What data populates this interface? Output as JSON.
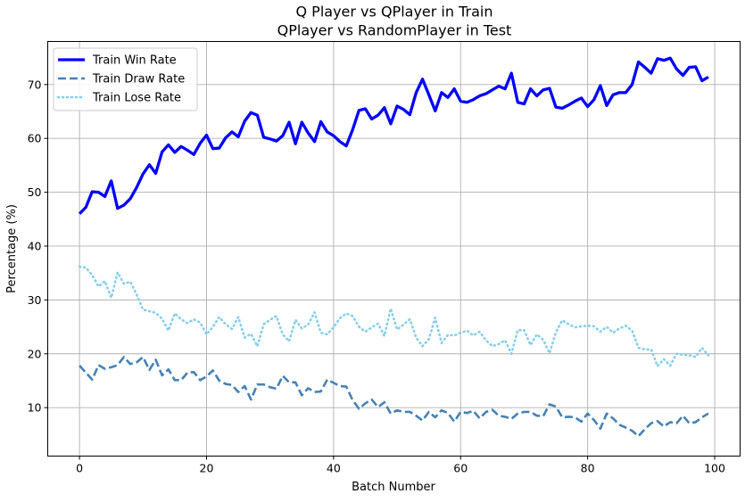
{
  "chart_data": {
    "type": "line",
    "title": [
      "Q Player vs QPlayer in Train",
      "QPlayer vs RandomPlayer in Test"
    ],
    "xlabel": "Batch Number",
    "ylabel": "Percentage (%)",
    "xlim": [
      -5,
      104
    ],
    "ylim": [
      1,
      78
    ],
    "xticks": [
      0,
      20,
      40,
      60,
      80,
      100
    ],
    "yticks": [
      10,
      20,
      30,
      40,
      50,
      60,
      70
    ],
    "grid": true,
    "legend": "top-left",
    "x": [
      0,
      1,
      2,
      3,
      4,
      5,
      6,
      7,
      8,
      9,
      10,
      11,
      12,
      13,
      14,
      15,
      16,
      17,
      18,
      19,
      20,
      21,
      22,
      23,
      24,
      25,
      26,
      27,
      28,
      29,
      30,
      31,
      32,
      33,
      34,
      35,
      36,
      37,
      38,
      39,
      40,
      41,
      42,
      43,
      44,
      45,
      46,
      47,
      48,
      49,
      50,
      51,
      52,
      53,
      54,
      55,
      56,
      57,
      58,
      59,
      60,
      61,
      62,
      63,
      64,
      65,
      66,
      67,
      68,
      69,
      70,
      71,
      72,
      73,
      74,
      75,
      76,
      77,
      78,
      79,
      80,
      81,
      82,
      83,
      84,
      85,
      86,
      87,
      88,
      89,
      90,
      91,
      92,
      93,
      94,
      95,
      96,
      97,
      98,
      99
    ],
    "series": [
      {
        "name": "Train Win Rate",
        "color": "#0000ff",
        "style": "solid",
        "values": [
          46,
          47.2,
          50.1,
          50,
          49.2,
          52.1,
          47,
          47.6,
          48.8,
          50.9,
          53.4,
          55.1,
          53.5,
          57.5,
          58.8,
          57.4,
          58.5,
          57.8,
          57,
          59.1,
          60.6,
          58.1,
          58.2,
          60.1,
          61.2,
          60.3,
          63.2,
          64.8,
          64.3,
          60.2,
          59.9,
          59.5,
          60.5,
          63,
          59,
          63,
          61,
          59.4,
          63.1,
          61.2,
          60.5,
          59.4,
          58.6,
          61.6,
          65.2,
          65.5,
          63.6,
          64.3,
          65.7,
          62.7,
          66,
          65.4,
          64.4,
          68.5,
          71,
          68.1,
          65.1,
          68.5,
          67.6,
          69.2,
          66.9,
          66.7,
          67.2,
          67.9,
          68.3,
          69,
          69.7,
          69.2,
          72.1,
          66.7,
          66.4,
          69.2,
          67.9,
          69,
          69.3,
          65.8,
          65.6,
          66.2,
          66.9,
          67.5,
          65.9,
          67.2,
          69.8,
          66.1,
          68.1,
          68.5,
          68.5,
          70,
          74.2,
          73.2,
          72.1,
          74.8,
          74.5,
          74.9,
          72.9,
          71.7,
          73.2,
          73.3,
          70.7,
          71.4
        ]
      },
      {
        "name": "Train Draw Rate",
        "color": "#4682b4",
        "style": "dashed",
        "values": [
          17.8,
          16.5,
          15.2,
          17.9,
          17.2,
          17.5,
          17.9,
          19.4,
          18.1,
          18.4,
          19.4,
          17,
          18.9,
          16,
          17.1,
          15.1,
          15.1,
          16.5,
          16.6,
          15.1,
          15.8,
          16.9,
          15,
          14.4,
          14.2,
          12.9,
          14,
          11.5,
          14.3,
          14.3,
          13.8,
          13.5,
          15.9,
          14.7,
          14.7,
          12.3,
          13.6,
          12.9,
          13,
          15.2,
          14.6,
          14,
          13.9,
          11.4,
          9.8,
          10.8,
          11.5,
          10.1,
          11,
          8.9,
          9.5,
          9.2,
          9.2,
          8.5,
          7.6,
          9.2,
          8.2,
          9.5,
          9,
          7.4,
          9.2,
          9,
          9.4,
          8,
          9.2,
          9.6,
          8.5,
          8.3,
          7.9,
          8.9,
          9.2,
          9.2,
          8.5,
          8.4,
          10.6,
          10.2,
          8.2,
          8.3,
          8.2,
          7.4,
          8.9,
          7.7,
          6.1,
          8.9,
          8,
          6.8,
          6.3,
          5.7,
          4.7,
          6,
          7.1,
          7.5,
          6.5,
          7.3,
          7.1,
          8.5,
          7.1,
          7.3,
          8.2,
          8.9
        ]
      },
      {
        "name": "Train Lose Rate",
        "color": "#87ceeb",
        "style": "dotted",
        "values": [
          36.2,
          36,
          34.6,
          32.5,
          33.5,
          30.4,
          35.1,
          33,
          33.4,
          31,
          28.2,
          27.9,
          27.6,
          26.5,
          24.3,
          27.5,
          26.4,
          25.7,
          26.4,
          25.8,
          23.6,
          25,
          26.8,
          25.5,
          24.6,
          26.8,
          23,
          23.7,
          21.4,
          25.5,
          26.3,
          27,
          23.6,
          22.3,
          26.3,
          24.7,
          25.4,
          27.7,
          23.9,
          23.6,
          24.9,
          26.6,
          27.5,
          27,
          25,
          24.1,
          24.9,
          25.6,
          23.3,
          28.4,
          24.5,
          25.4,
          26.4,
          23,
          21.4,
          22.7,
          26.7,
          22,
          23.5,
          23.4,
          23.9,
          24.3,
          23.4,
          24.1,
          22.5,
          21.4,
          21.8,
          22.5,
          20,
          24.4,
          24.4,
          21.6,
          23.6,
          22.6,
          20.1,
          24,
          26.2,
          25.5,
          24.9,
          25.1,
          25.2,
          25.1,
          24.1,
          25,
          23.9,
          24.7,
          25.2,
          24.3,
          21.1,
          20.8,
          20.8,
          17.7,
          19,
          17.8,
          20,
          19.8,
          19.7,
          19.4,
          21.1,
          19.7
        ]
      }
    ]
  }
}
